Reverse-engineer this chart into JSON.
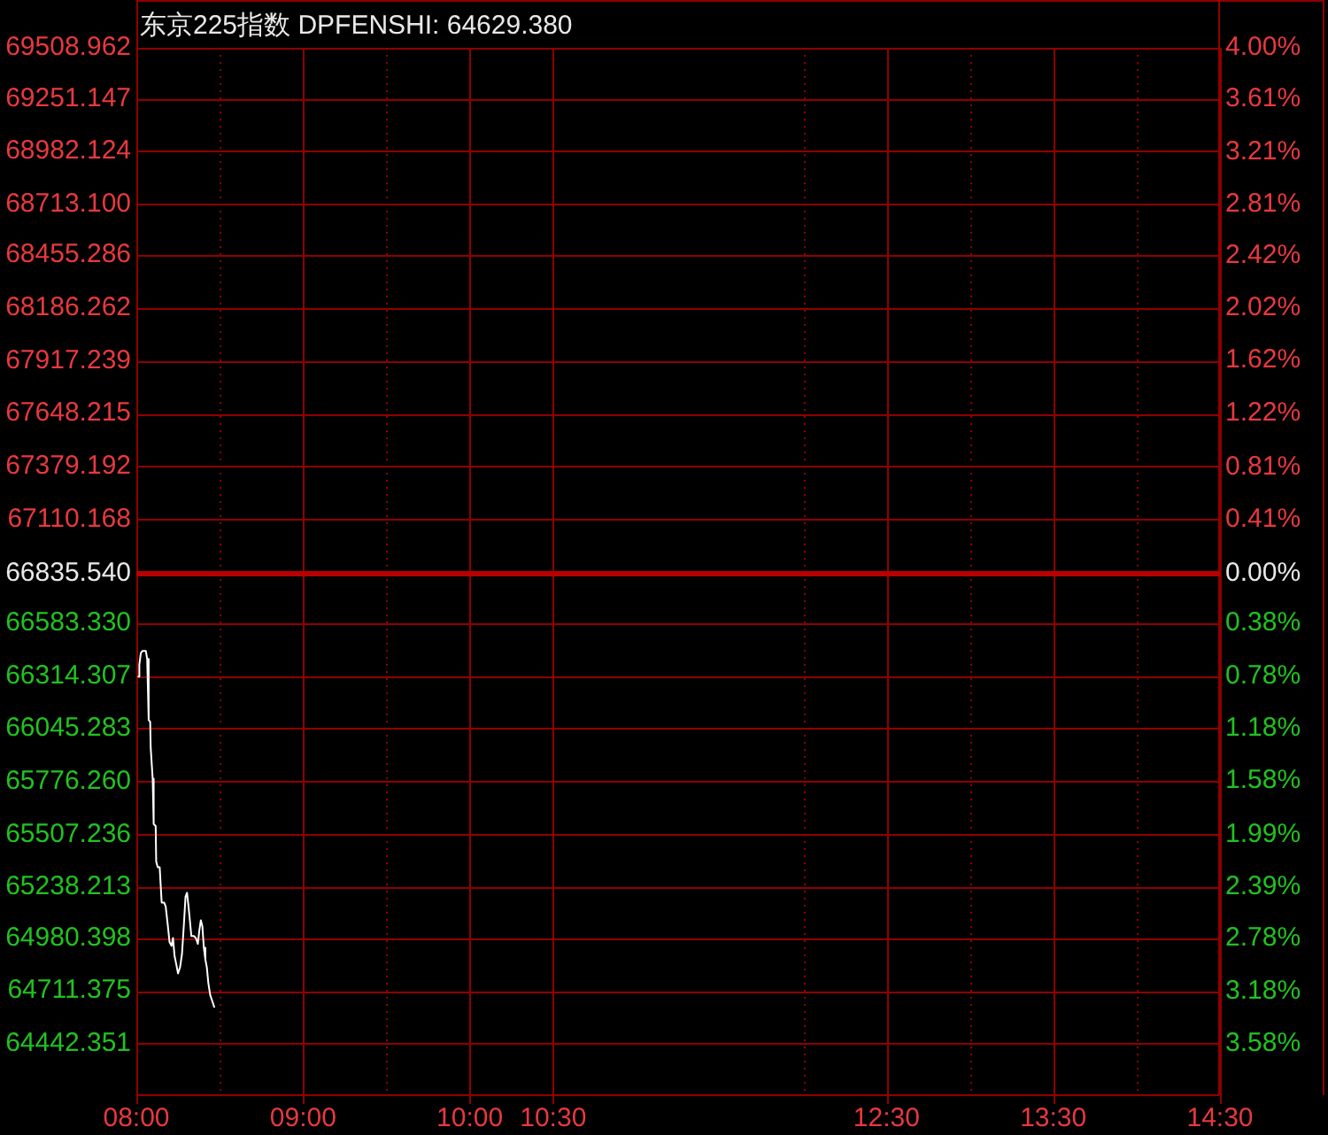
{
  "chart_data": {
    "type": "line",
    "title": "东京225指数 DPFENSHI: 64629.380",
    "x": [
      8.012,
      8.018,
      8.027,
      8.036,
      8.057,
      8.065,
      8.074,
      8.083,
      8.086,
      8.098,
      8.104,
      8.116,
      8.119,
      8.128,
      8.14,
      8.152,
      8.167,
      8.176,
      8.188,
      8.199,
      8.211,
      8.22,
      8.229,
      8.241,
      8.25,
      8.262,
      8.274,
      8.286,
      8.295,
      8.304,
      8.313,
      8.321,
      8.33,
      8.345,
      8.357,
      8.369,
      8.378,
      8.387,
      8.396,
      8.405,
      8.414,
      8.423,
      8.432,
      8.443,
      8.455,
      8.467
    ],
    "series": [
      {
        "color": "#ffffff",
        "values": [
          66310,
          66370,
          66430,
          66440,
          66440,
          66400,
          66090,
          66080,
          65950,
          65790,
          65560,
          65550,
          65370,
          65340,
          65340,
          65160,
          65160,
          65140,
          65050,
          64960,
          64940,
          64980,
          64890,
          64840,
          64800,
          64830,
          64900,
          65060,
          65190,
          65210,
          65140,
          65070,
          64990,
          64990,
          64980,
          64950,
          65020,
          65070,
          65040,
          64930,
          64870,
          64830,
          64750,
          64690,
          64660,
          64629.38
        ]
      }
    ],
    "xlim": [
      8,
      14.5
    ],
    "xticks": [
      {
        "value": 8,
        "label": "08:00"
      },
      {
        "value": 8.5,
        "label": null
      },
      {
        "value": 9,
        "label": "09:00"
      },
      {
        "value": 9.5,
        "label": null
      },
      {
        "value": 10,
        "label": "10:00"
      },
      {
        "value": 10.5,
        "label": "10:30"
      },
      {
        "value": 12,
        "label": null
      },
      {
        "value": 12.5,
        "label": "12:30"
      },
      {
        "value": 13,
        "label": null
      },
      {
        "value": 13.5,
        "label": "13:30"
      },
      {
        "value": 14,
        "label": null
      },
      {
        "value": 14.5,
        "label": "14:30"
      }
    ],
    "ylim": [
      64176,
      69508.962
    ],
    "yticks": [
      69508.962,
      69251.147,
      68982.124,
      {
        "value": 68713.1,
        "label": "68713.100"
      },
      68455.286,
      68186.262,
      67917.239,
      67648.215,
      67379.192,
      67110.168,
      {
        "value": 66835.54,
        "label": "66835.540"
      },
      {
        "value": 66583.33,
        "label": "66583.330"
      },
      66314.307,
      66045.283,
      {
        "value": 65776.26,
        "label": "65776.260"
      },
      65507.236,
      65238.213,
      64980.398,
      64711.375,
      64442.351
    ],
    "y2lim": [
      -3.979,
      4.0
    ],
    "y2ticks": [
      {
        "value": 4.0,
        "label": "4.00%"
      },
      {
        "value": 3.61,
        "label": "3.61%"
      },
      {
        "value": 3.21,
        "label": "3.21%"
      },
      {
        "value": 2.81,
        "label": "2.81%"
      },
      {
        "value": 2.42,
        "label": "2.42%"
      },
      {
        "value": 2.02,
        "label": "2.02%"
      },
      {
        "value": 1.62,
        "label": "1.62%"
      },
      {
        "value": 1.22,
        "label": "1.22%"
      },
      {
        "value": 0.81,
        "label": "0.81%"
      },
      {
        "value": 0.41,
        "label": "0.41%"
      },
      {
        "value": 0,
        "label": "0.00%"
      },
      {
        "value": -0.38,
        "label": "0.38%"
      },
      {
        "value": -0.78,
        "label": "0.78%"
      },
      {
        "value": -1.18,
        "label": "1.18%"
      },
      {
        "value": -1.58,
        "label": "1.58%"
      },
      {
        "value": -1.99,
        "label": "1.99%"
      },
      {
        "value": -2.39,
        "label": "2.39%"
      },
      {
        "value": -2.78,
        "label": "2.78%"
      },
      {
        "value": -3.18,
        "label": "3.18%"
      },
      {
        "value": -3.58,
        "label": "3.58%"
      }
    ],
    "ref_lines": [
      {
        "axis": "y",
        "value": 66835.54,
        "color": "#b80000"
      }
    ],
    "grid": true,
    "marker": "none"
  }
}
